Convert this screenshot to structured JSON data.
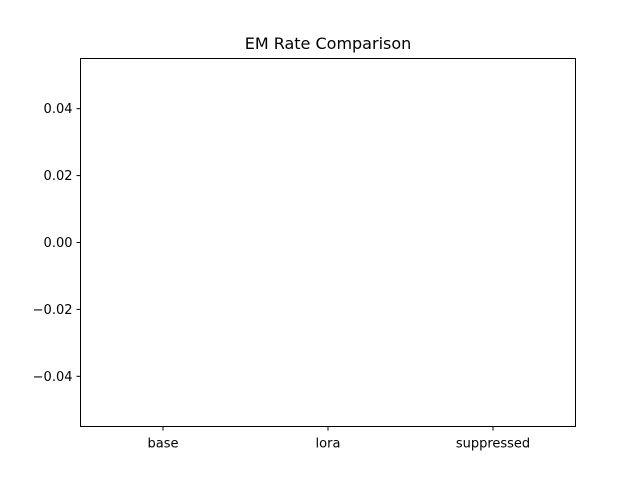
{
  "chart_data": {
    "type": "bar",
    "title": "EM Rate Comparison",
    "xlabel": "",
    "ylabel": "",
    "categories": [
      "base",
      "lora",
      "suppressed"
    ],
    "values": [
      0,
      0,
      0
    ],
    "ylim": [
      -0.055,
      0.055
    ],
    "yticks": [
      -0.04,
      -0.02,
      0.0,
      0.02,
      0.04
    ],
    "ytick_labels": [
      "−0.04",
      "−0.02",
      "0.00",
      "0.02",
      "0.04"
    ],
    "grid": false,
    "bar_color": "#1f77b4"
  }
}
